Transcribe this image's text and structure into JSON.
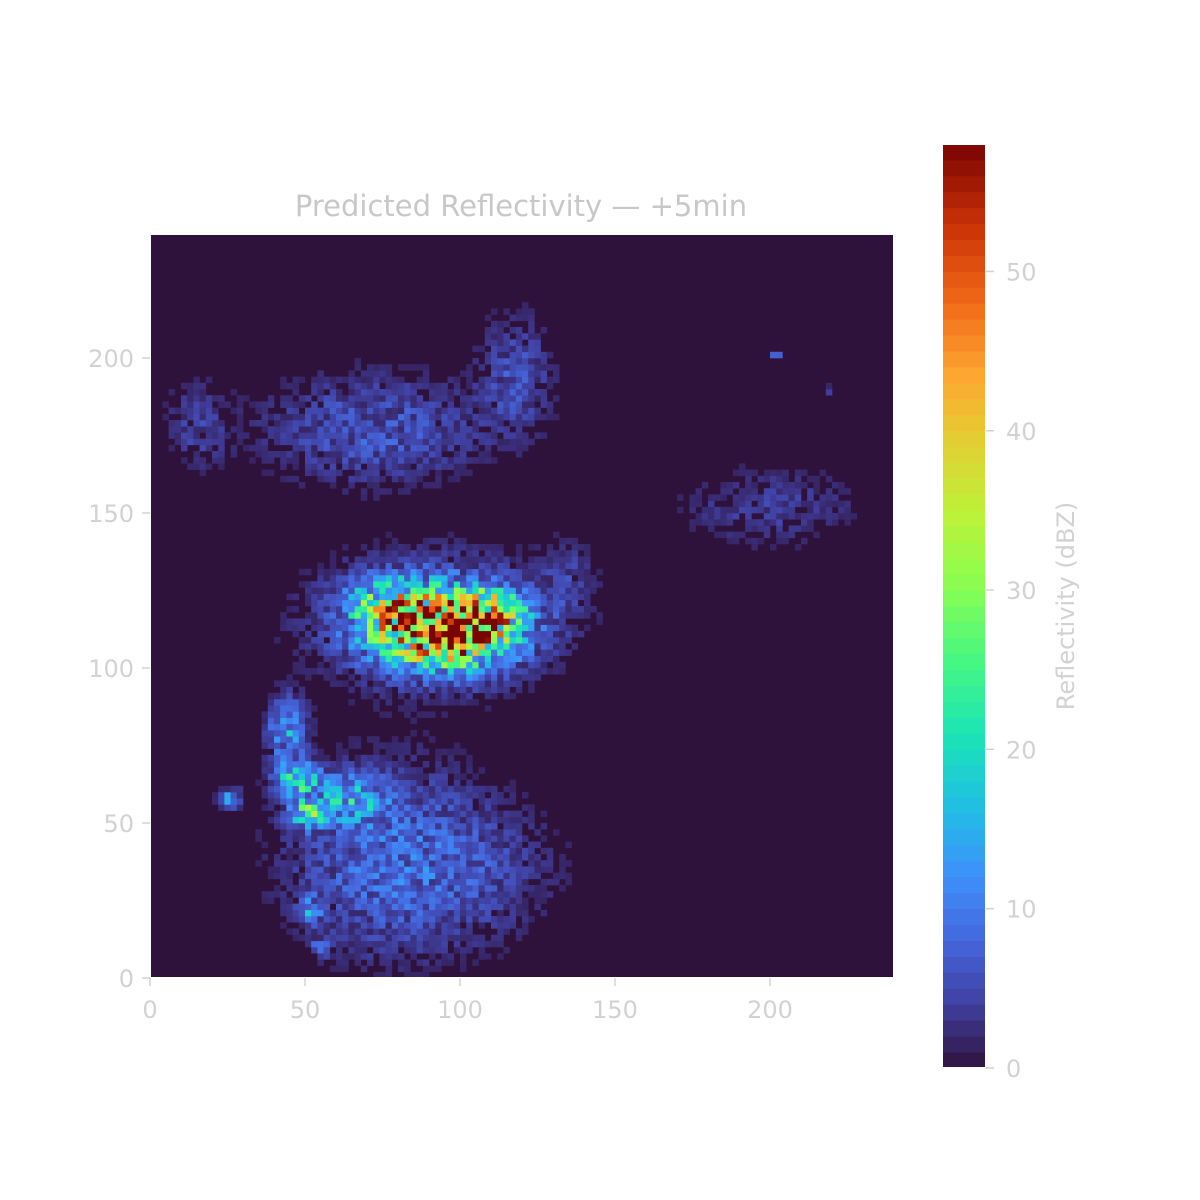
{
  "chart_data": {
    "type": "heatmap",
    "title": "Predicted Reflectivity — +5min",
    "grid": false,
    "x_range": [
      0,
      240
    ],
    "y_range": [
      0,
      240
    ],
    "x_ticks": [
      0,
      50,
      100,
      150,
      200
    ],
    "y_ticks": [
      0,
      50,
      100,
      150,
      200
    ],
    "colorbar": {
      "label": "Reflectivity (dBZ)",
      "range": [
        0,
        58
      ],
      "ticks": [
        0,
        10,
        20,
        30,
        40,
        50
      ],
      "colormap": "turbo",
      "background_color": "#2f123c"
    },
    "cells": [
      {
        "name": "central storm core",
        "x": 95,
        "y": 112,
        "sx": 13,
        "sy": 7,
        "peak": 50
      },
      {
        "name": "central cluster envelope",
        "x": 92,
        "y": 115,
        "sx": 24,
        "sy": 13,
        "peak": 11
      },
      {
        "name": "central west band",
        "x": 78,
        "y": 120,
        "sx": 9,
        "sy": 6,
        "peak": 18
      },
      {
        "name": "central northeast",
        "x": 108,
        "y": 118,
        "sx": 8,
        "sy": 5,
        "peak": 22
      },
      {
        "name": "southwest cluster",
        "x": 78,
        "y": 38,
        "sx": 22,
        "sy": 20,
        "peak": 8
      },
      {
        "name": "southwest bright arc",
        "x": 65,
        "y": 58,
        "sx": 7,
        "sy": 5,
        "peak": 14
      },
      {
        "name": "southwest knot",
        "x": 48,
        "y": 64,
        "sx": 5,
        "sy": 4,
        "peak": 18
      },
      {
        "name": "southwest knot 2",
        "x": 51,
        "y": 53,
        "sx": 4,
        "sy": 3,
        "peak": 19
      },
      {
        "name": "west blob",
        "x": 44,
        "y": 80,
        "sx": 4,
        "sy": 7,
        "peak": 12
      },
      {
        "name": "far west blob",
        "x": 26,
        "y": 58,
        "sx": 2.5,
        "sy": 2,
        "peak": 11
      },
      {
        "name": "south spot",
        "x": 52,
        "y": 22,
        "sx": 2.5,
        "sy": 3,
        "peak": 10
      },
      {
        "name": "south small",
        "x": 55,
        "y": 10,
        "sx": 2,
        "sy": 2,
        "peak": 8
      },
      {
        "name": "north arc",
        "x": 72,
        "y": 177,
        "sx": 24,
        "sy": 12,
        "peak": 6
      },
      {
        "name": "north top",
        "x": 118,
        "y": 195,
        "sx": 8,
        "sy": 13,
        "peak": 5
      },
      {
        "name": "far northwest",
        "x": 15,
        "y": 178,
        "sx": 7,
        "sy": 10,
        "peak": 3.5
      },
      {
        "name": "east scatter",
        "x": 200,
        "y": 152,
        "sx": 20,
        "sy": 9,
        "peak": 3.5
      },
      {
        "name": "east mid",
        "x": 135,
        "y": 130,
        "sx": 6,
        "sy": 9,
        "peak": 3
      },
      {
        "name": "far east speck",
        "x": 202,
        "y": 201,
        "sx": 1,
        "sy": 1,
        "peak": 9
      },
      {
        "name": "far east speck 2",
        "x": 219,
        "y": 190,
        "sx": 1,
        "sy": 1,
        "peak": 7
      },
      {
        "name": "south drizzle",
        "x": 110,
        "y": 35,
        "sx": 18,
        "sy": 14,
        "peak": 2.5
      }
    ]
  }
}
